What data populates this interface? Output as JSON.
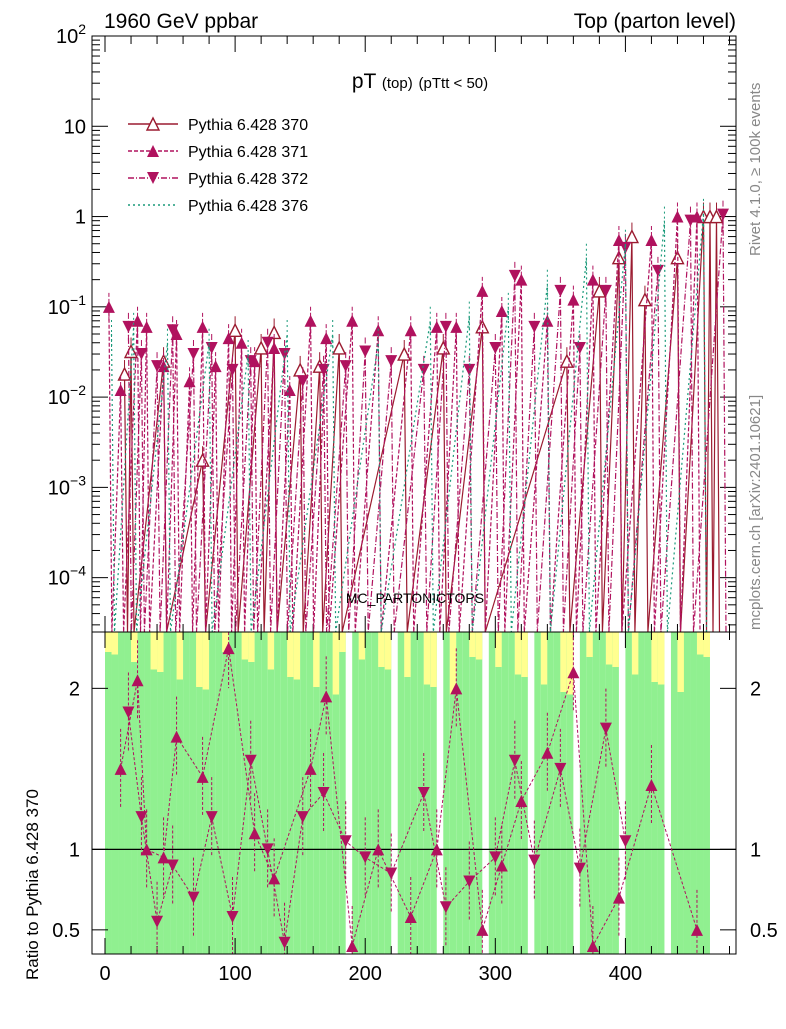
{
  "header": {
    "left": "1960 GeV ppbar",
    "right": "Top (parton level)"
  },
  "plot_title": {
    "main": "pT",
    "sub1": "(top)",
    "sub2": "(pTtt < 50)"
  },
  "side_labels": {
    "rivet": "Rivet 4.1.0, ≥ 100k events",
    "mcplots": "mcplots.cern.ch [arXiv:2401.10621]"
  },
  "watermark": "MC_PARTONICTOPS",
  "colors": {
    "c370": "#9b1b30",
    "c371": "#b0125e",
    "c372": "#b0125e",
    "c376": "#1a9a7a",
    "band_green": "#90f090",
    "band_yellow": "#ffff90"
  },
  "chart_data": [
    {
      "type": "line",
      "log_y": true,
      "ylim": [
        2.5e-05,
        100
      ],
      "xlim": [
        -10,
        485
      ],
      "y_ticks": [
        {
          "v": 0.0001,
          "b": "10",
          "e": "−4"
        },
        {
          "v": 0.001,
          "b": "10",
          "e": "−3"
        },
        {
          "v": 0.01,
          "b": "10",
          "e": "−2"
        },
        {
          "v": 0.1,
          "b": "10",
          "e": "−1"
        },
        {
          "v": 1,
          "b": "1",
          "e": ""
        },
        {
          "v": 10,
          "b": "10",
          "e": ""
        },
        {
          "v": 100,
          "b": "10",
          "e": "2"
        }
      ],
      "series": [
        {
          "name": "Pythia 6.428 370",
          "marker": "open-triangle-up",
          "dash": "",
          "x": [
            15,
            20,
            45,
            75,
            100,
            120,
            130,
            150,
            165,
            180,
            230,
            260,
            290,
            355,
            380,
            395,
            405,
            415,
            440,
            460,
            465,
            470
          ],
          "y": [
            0.018,
            0.032,
            0.025,
            0.002,
            0.055,
            0.035,
            0.052,
            0.02,
            0.022,
            0.035,
            0.03,
            0.035,
            0.06,
            0.025,
            0.15,
            0.35,
            0.6,
            0.12,
            0.35,
            1.0,
            1.0,
            1.0
          ]
        },
        {
          "name": "Pythia 6.428 371",
          "marker": "triangle-up",
          "dash": "4,2",
          "x": [
            3,
            12,
            25,
            32,
            45,
            55,
            65,
            75,
            85,
            95,
            105,
            115,
            130,
            142,
            158,
            170,
            190,
            210,
            235,
            255,
            270,
            290,
            305,
            320,
            340,
            360,
            375,
            395,
            420,
            440,
            455
          ],
          "y": [
            0.1,
            0.012,
            0.07,
            0.06,
            0.022,
            0.05,
            0.015,
            0.06,
            0.022,
            0.045,
            0.04,
            0.025,
            0.035,
            0.012,
            0.07,
            0.045,
            0.07,
            0.055,
            0.055,
            0.06,
            0.06,
            0.15,
            0.09,
            0.2,
            0.07,
            0.12,
            0.2,
            0.55,
            0.55,
            1.0,
            1.0
          ]
        },
        {
          "name": "Pythia 6.428 372",
          "marker": "triangle-down",
          "dash": "6,2,1,2",
          "x": [
            18,
            28,
            40,
            52,
            68,
            82,
            98,
            112,
            125,
            138,
            152,
            168,
            185,
            200,
            220,
            245,
            262,
            280,
            300,
            315,
            330,
            350,
            365,
            385,
            400,
            425,
            450,
            475
          ],
          "y": [
            0.06,
            0.03,
            0.022,
            0.055,
            0.03,
            0.035,
            0.02,
            0.025,
            0.04,
            0.03,
            0.015,
            0.02,
            0.022,
            0.032,
            0.025,
            0.02,
            0.06,
            0.02,
            0.035,
            0.22,
            0.06,
            0.15,
            0.035,
            0.15,
            0.45,
            0.25,
            0.9,
            1.05
          ]
        },
        {
          "name": "Pythia 6.428 376",
          "marker": "none",
          "dash": "2,3",
          "x": [
            5,
            22,
            48,
            80,
            110,
            140,
            175,
            210,
            250,
            280,
            310,
            340,
            370,
            400,
            430,
            460
          ],
          "y": [
            0.05,
            0.06,
            0.04,
            0.04,
            0.03,
            0.05,
            0.05,
            0.04,
            0.07,
            0.08,
            0.1,
            0.18,
            0.35,
            0.5,
            0.9,
            1.1
          ]
        }
      ],
      "legend_position": "top-left"
    },
    {
      "type": "line",
      "ylabel": "Ratio to Pythia 6.428 370",
      "xlim": [
        -10,
        485
      ],
      "ylim": [
        0.35,
        2.35
      ],
      "y_ticks": [
        {
          "v": 0.5,
          "label": "0.5"
        },
        {
          "v": 1,
          "label": "1"
        },
        {
          "v": 2,
          "label": "2"
        }
      ],
      "x_ticks": [
        {
          "v": 0,
          "label": "0"
        },
        {
          "v": 100,
          "label": "100"
        },
        {
          "v": 200,
          "label": "200"
        },
        {
          "v": 300,
          "label": "300"
        },
        {
          "v": 400,
          "label": "400"
        }
      ],
      "reference": 1,
      "ratio_points": {
        "s371": [
          [
            12,
            1.5
          ],
          [
            25,
            2.05
          ],
          [
            32,
            1.0
          ],
          [
            45,
            0.95
          ],
          [
            55,
            1.7
          ],
          [
            75,
            1.45
          ],
          [
            95,
            2.25
          ],
          [
            115,
            1.1
          ],
          [
            130,
            0.82
          ],
          [
            158,
            1.5
          ],
          [
            170,
            1.95
          ],
          [
            190,
            0.4
          ],
          [
            210,
            1.0
          ],
          [
            235,
            0.58
          ],
          [
            255,
            1.0
          ],
          [
            270,
            2.0
          ],
          [
            290,
            0.5
          ],
          [
            305,
            0.9
          ],
          [
            320,
            1.3
          ],
          [
            340,
            1.6
          ],
          [
            360,
            2.1
          ],
          [
            375,
            0.4
          ],
          [
            395,
            0.7
          ],
          [
            420,
            1.4
          ],
          [
            455,
            0.5
          ]
        ],
        "s372": [
          [
            18,
            1.85
          ],
          [
            28,
            1.2
          ],
          [
            40,
            0.55
          ],
          [
            52,
            0.9
          ],
          [
            68,
            0.7
          ],
          [
            82,
            1.2
          ],
          [
            98,
            0.58
          ],
          [
            112,
            1.55
          ],
          [
            125,
            1.0
          ],
          [
            138,
            0.42
          ],
          [
            152,
            1.2
          ],
          [
            168,
            1.35
          ],
          [
            185,
            1.05
          ],
          [
            200,
            0.95
          ],
          [
            220,
            0.85
          ],
          [
            245,
            1.35
          ],
          [
            262,
            0.64
          ],
          [
            280,
            0.8
          ],
          [
            300,
            0.95
          ],
          [
            315,
            1.55
          ],
          [
            330,
            0.93
          ],
          [
            350,
            1.5
          ],
          [
            365,
            0.88
          ],
          [
            385,
            1.75
          ],
          [
            400,
            1.05
          ]
        ]
      }
    }
  ]
}
